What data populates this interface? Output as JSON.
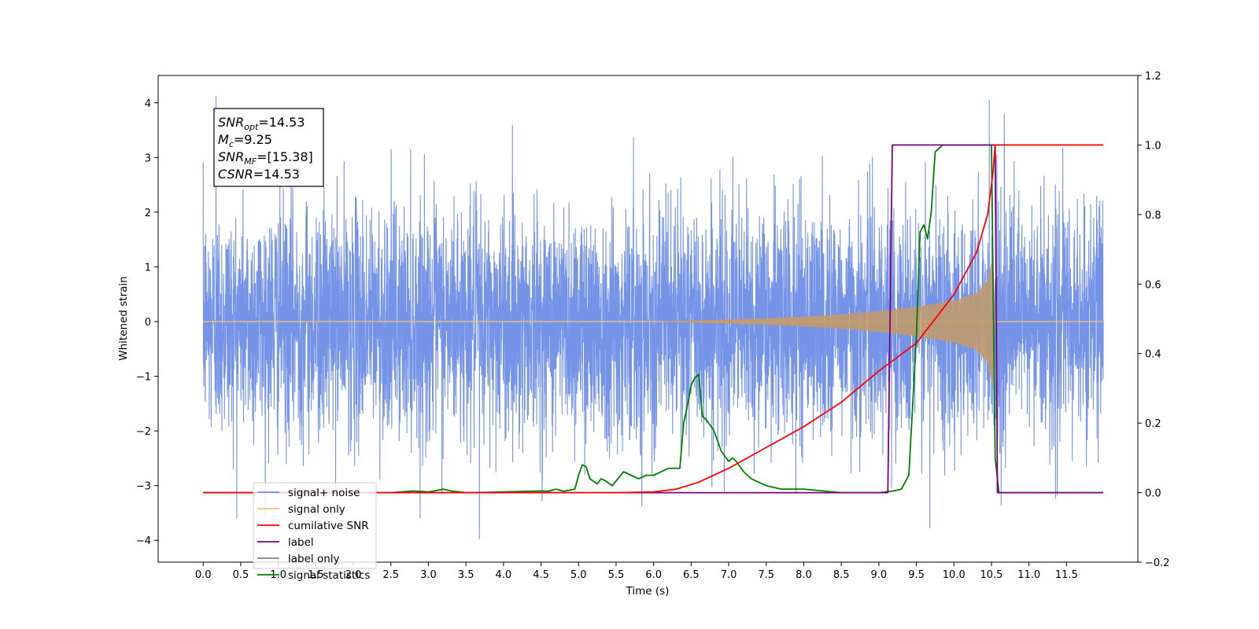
{
  "chart_data": {
    "type": "line",
    "xlabel": "Time (s)",
    "ylabel": "Whitened strain",
    "xlim": [
      -0.6,
      12.45
    ],
    "ylim_left": [
      -4.4,
      4.5
    ],
    "ylim_right": [
      -0.2,
      1.2
    ],
    "x_ticks": [
      0.0,
      0.5,
      1.0,
      1.5,
      2.0,
      2.5,
      3.0,
      3.5,
      4.0,
      4.5,
      5.0,
      5.5,
      6.0,
      6.5,
      7.0,
      7.5,
      8.0,
      8.5,
      9.0,
      9.5,
      10.0,
      10.5,
      11.0,
      11.5
    ],
    "x_tick_labels": [
      "0.0",
      "0.5",
      "1.0",
      "1.5",
      "2.0",
      "2.5",
      "3.0",
      "3.5",
      "4.0",
      "4.5",
      "5.0",
      "5.5",
      "6.0",
      "6.5",
      "7.0",
      "7.5",
      "8.0",
      "8.5",
      "9.0",
      "9.5",
      "10.0",
      "10.5",
      "11.0",
      "11.5"
    ],
    "y_ticks_left": [
      -4,
      -3,
      -2,
      -1,
      0,
      1,
      2,
      3,
      4
    ],
    "y_tick_labels_left": [
      "−4",
      "−3",
      "−2",
      "−1",
      "0",
      "1",
      "2",
      "3",
      "4"
    ],
    "y_ticks_right": [
      -0.2,
      0.0,
      0.2,
      0.4,
      0.6,
      0.8,
      1.0,
      1.2
    ],
    "y_tick_labels_right": [
      "−0.2",
      "0.0",
      "0.2",
      "0.4",
      "0.6",
      "0.8",
      "1.0",
      "1.2"
    ],
    "grid": false,
    "legend_position": "lower-left",
    "annotation": [
      {
        "base": "SNR",
        "sub": "opt",
        "value": "=14.53"
      },
      {
        "base": "M",
        "sub": "c",
        "value": "=9.25"
      },
      {
        "base": "SNR",
        "sub": "MF",
        "value": "=[15.38]"
      },
      {
        "base": "CSNR",
        "sub": "",
        "value": "=14.53"
      }
    ],
    "series": [
      {
        "name": "signal+ noise",
        "color": "#6f8ee6",
        "axis": "left",
        "description_values": {
          "x_range": [
            0.0,
            11.99
          ],
          "noise_std": 1.05,
          "extremes": [
            [
              0.17,
              4.12
            ],
            [
              3.68,
              -3.98
            ],
            [
              10.47,
              4.05
            ],
            [
              9.68,
              -3.78
            ]
          ]
        }
      },
      {
        "name": "signal only",
        "color": "#f5c26b",
        "axis": "left",
        "envelope": {
          "x": [
            0.0,
            6.0,
            6.5,
            7.0,
            7.5,
            8.0,
            8.5,
            9.0,
            9.5,
            10.0,
            10.3,
            10.45,
            10.5,
            10.52,
            10.55,
            11.99
          ],
          "amplitude": [
            0.0,
            0.0,
            0.02,
            0.04,
            0.06,
            0.09,
            0.13,
            0.19,
            0.27,
            0.38,
            0.52,
            0.75,
            1.1,
            1.2,
            0.0,
            0.0
          ]
        }
      },
      {
        "name": "cumilative SNR",
        "color": "#ff0000",
        "axis": "right",
        "x": [
          0.0,
          5.5,
          6.0,
          6.3,
          6.6,
          7.0,
          7.5,
          8.0,
          8.5,
          9.0,
          9.5,
          10.0,
          10.3,
          10.45,
          10.52,
          10.55,
          11.99
        ],
        "y": [
          0.0,
          0.0,
          0.002,
          0.01,
          0.03,
          0.07,
          0.13,
          0.19,
          0.26,
          0.35,
          0.43,
          0.57,
          0.69,
          0.8,
          0.92,
          1.0,
          1.0
        ]
      },
      {
        "name": "label",
        "color": "#800080",
        "axis": "right",
        "x": [
          0.0,
          9.12,
          9.18,
          10.55,
          10.58,
          11.99
        ],
        "y": [
          0.0,
          0.0,
          1.0,
          1.0,
          0.0,
          0.0
        ]
      },
      {
        "name": "label only",
        "color": "#808080",
        "axis": "right",
        "x": [],
        "y": []
      },
      {
        "name": "signal statistics",
        "color": "#008000",
        "axis": "right",
        "x": [
          0.0,
          2.5,
          2.8,
          3.0,
          3.2,
          3.3,
          3.5,
          4.0,
          4.5,
          4.6,
          4.7,
          4.8,
          4.95,
          5.0,
          5.05,
          5.1,
          5.15,
          5.25,
          5.3,
          5.35,
          5.45,
          5.6,
          5.7,
          5.8,
          5.9,
          6.0,
          6.2,
          6.3,
          6.35,
          6.4,
          6.45,
          6.5,
          6.55,
          6.6,
          6.65,
          6.7,
          6.8,
          6.9,
          7.0,
          7.05,
          7.1,
          7.2,
          7.3,
          7.5,
          7.7,
          8.0,
          8.5,
          9.0,
          9.2,
          9.3,
          9.4,
          9.5,
          9.55,
          9.6,
          9.65,
          9.7,
          9.75,
          9.8,
          9.85,
          9.9,
          10.0,
          10.5,
          10.55,
          10.6,
          11.99
        ],
        "y": [
          0.0,
          0.0,
          0.005,
          0.002,
          0.01,
          0.005,
          0.0,
          0.002,
          0.005,
          0.004,
          0.01,
          0.004,
          0.01,
          0.05,
          0.08,
          0.075,
          0.04,
          0.025,
          0.04,
          0.035,
          0.02,
          0.06,
          0.05,
          0.04,
          0.05,
          0.05,
          0.07,
          0.07,
          0.07,
          0.2,
          0.25,
          0.31,
          0.33,
          0.34,
          0.22,
          0.21,
          0.18,
          0.12,
          0.09,
          0.1,
          0.09,
          0.06,
          0.04,
          0.02,
          0.01,
          0.01,
          0.0,
          0.0,
          0.005,
          0.01,
          0.05,
          0.45,
          0.75,
          0.77,
          0.73,
          0.81,
          0.98,
          0.99,
          1.0,
          1.0,
          1.0,
          1.0,
          0.1,
          0.0,
          0.0
        ]
      }
    ]
  }
}
